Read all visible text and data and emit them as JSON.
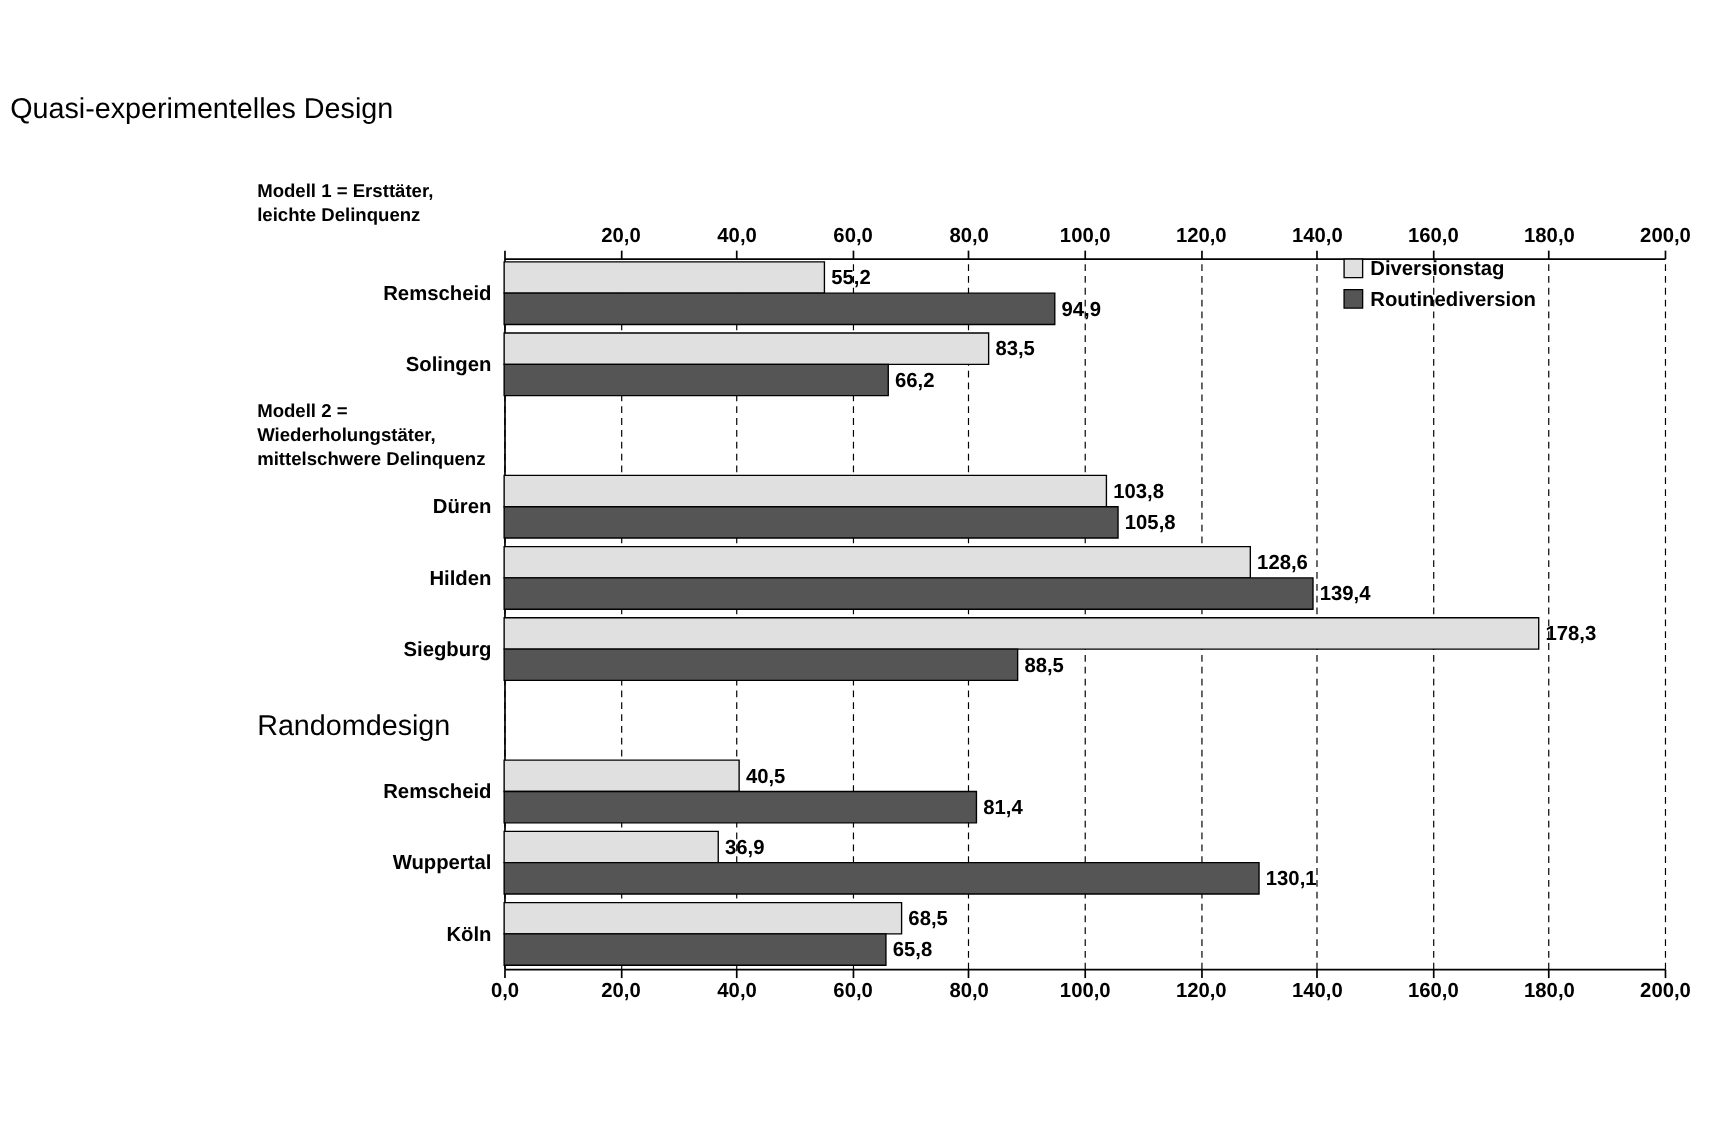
{
  "chart_data": {
    "type": "bar",
    "orientation": "horizontal",
    "title": "Quasi-experimentelles Design",
    "annotations": [
      "Modell 1 = Ersttäter,\nleichte Delinquenz",
      "Modell 2 =\nWiederholungstäter,\nmittelschwere Delinquenz",
      "Randomdesign"
    ],
    "categories": [
      "Remscheid",
      "Solingen",
      null,
      "Düren",
      "Hilden",
      "Siegburg",
      null,
      "Remscheid",
      "Wuppertal",
      "Köln"
    ],
    "series": [
      {
        "name": "Diversionstag",
        "color": "#e0e0e0",
        "values": [
          55.2,
          83.5,
          null,
          103.8,
          128.6,
          178.3,
          null,
          40.5,
          36.9,
          68.5
        ],
        "value_labels": [
          "55,2",
          "83,5",
          null,
          "103,8",
          "128,6",
          "178,3",
          null,
          "40,5",
          "36,9",
          "68,5"
        ]
      },
      {
        "name": "Routinediversion",
        "color": "#555555",
        "values": [
          94.9,
          66.2,
          null,
          105.8,
          139.4,
          88.5,
          null,
          81.4,
          130.1,
          65.8
        ],
        "value_labels": [
          "94,9",
          "66,2",
          null,
          "105,8",
          "139,4",
          "88,5",
          null,
          "81,4",
          "130,1",
          "65,8"
        ]
      }
    ],
    "xlim": [
      0,
      200
    ],
    "xticks": [
      {
        "value": 0,
        "label": "0,0"
      },
      {
        "value": 20,
        "label": "20,0"
      },
      {
        "value": 40,
        "label": "40,0"
      },
      {
        "value": 60,
        "label": "60,0"
      },
      {
        "value": 80,
        "label": "80,0"
      },
      {
        "value": 100,
        "label": "100,0"
      },
      {
        "value": 120,
        "label": "120,0"
      },
      {
        "value": 140,
        "label": "140,0"
      },
      {
        "value": 160,
        "label": "160,0"
      },
      {
        "value": 180,
        "label": "180,0"
      },
      {
        "value": 200,
        "label": "200,0"
      }
    ],
    "x2lim": [
      0,
      200
    ],
    "x2ticks": [
      {
        "value": 0,
        "label": null
      },
      {
        "value": 20,
        "label": "20,0"
      },
      {
        "value": 40,
        "label": "40,0"
      },
      {
        "value": 60,
        "label": "60,0"
      },
      {
        "value": 80,
        "label": "80,0"
      },
      {
        "value": 100,
        "label": "100,0"
      },
      {
        "value": 120,
        "label": "120,0"
      },
      {
        "value": 140,
        "label": "140,0"
      },
      {
        "value": 160,
        "label": "160,0"
      },
      {
        "value": 180,
        "label": "180,0"
      },
      {
        "value": 200,
        "label": "200,0"
      }
    ],
    "grid": "x",
    "line_style": "dashed",
    "legend": "right"
  }
}
